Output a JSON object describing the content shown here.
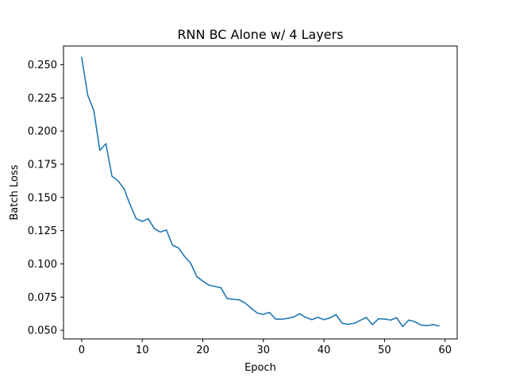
{
  "chart_data": {
    "type": "line",
    "title": "RNN BC Alone w/ 4 Layers",
    "xlabel": "Epoch",
    "ylabel": "Batch Loss",
    "xlim": [
      -3,
      62
    ],
    "ylim": [
      0.0435,
      0.264
    ],
    "grid": false,
    "x_ticks": [
      0,
      10,
      20,
      30,
      40,
      50,
      60
    ],
    "x_tick_labels": [
      "0",
      "10",
      "20",
      "30",
      "40",
      "50",
      "60"
    ],
    "y_ticks": [
      0.05,
      0.075,
      0.1,
      0.125,
      0.15,
      0.175,
      0.2,
      0.225,
      0.25
    ],
    "y_tick_labels": [
      "0.050",
      "0.075",
      "0.100",
      "0.125",
      "0.150",
      "0.175",
      "0.200",
      "0.225",
      "0.250"
    ],
    "series": [
      {
        "color": "#1f77b4",
        "x": [
          0,
          1,
          2,
          3,
          4,
          5,
          6,
          7,
          8,
          9,
          10,
          11,
          12,
          13,
          14,
          15,
          16,
          17,
          18,
          19,
          20,
          21,
          22,
          23,
          24,
          25,
          26,
          27,
          28,
          29,
          30,
          31,
          32,
          33,
          34,
          35,
          36,
          37,
          38,
          39,
          40,
          41,
          42,
          43,
          44,
          45,
          46,
          47,
          48,
          49,
          50,
          51,
          52,
          53,
          54,
          55,
          56,
          57,
          58,
          59
        ],
        "values": [
          0.2555,
          0.227,
          0.2155,
          0.1855,
          0.1905,
          0.166,
          0.1625,
          0.1565,
          0.1445,
          0.134,
          0.132,
          0.134,
          0.1265,
          0.124,
          0.1255,
          0.114,
          0.112,
          0.1055,
          0.1005,
          0.0905,
          0.087,
          0.084,
          0.083,
          0.082,
          0.074,
          0.0733,
          0.073,
          0.0705,
          0.0665,
          0.063,
          0.062,
          0.0635,
          0.0585,
          0.0583,
          0.059,
          0.06,
          0.0625,
          0.0597,
          0.058,
          0.0598,
          0.058,
          0.0593,
          0.0618,
          0.0553,
          0.0545,
          0.0553,
          0.0575,
          0.0597,
          0.0542,
          0.0587,
          0.0585,
          0.0577,
          0.0595,
          0.0528,
          0.0577,
          0.0565,
          0.054,
          0.0535,
          0.0543,
          0.0533
        ]
      }
    ]
  }
}
